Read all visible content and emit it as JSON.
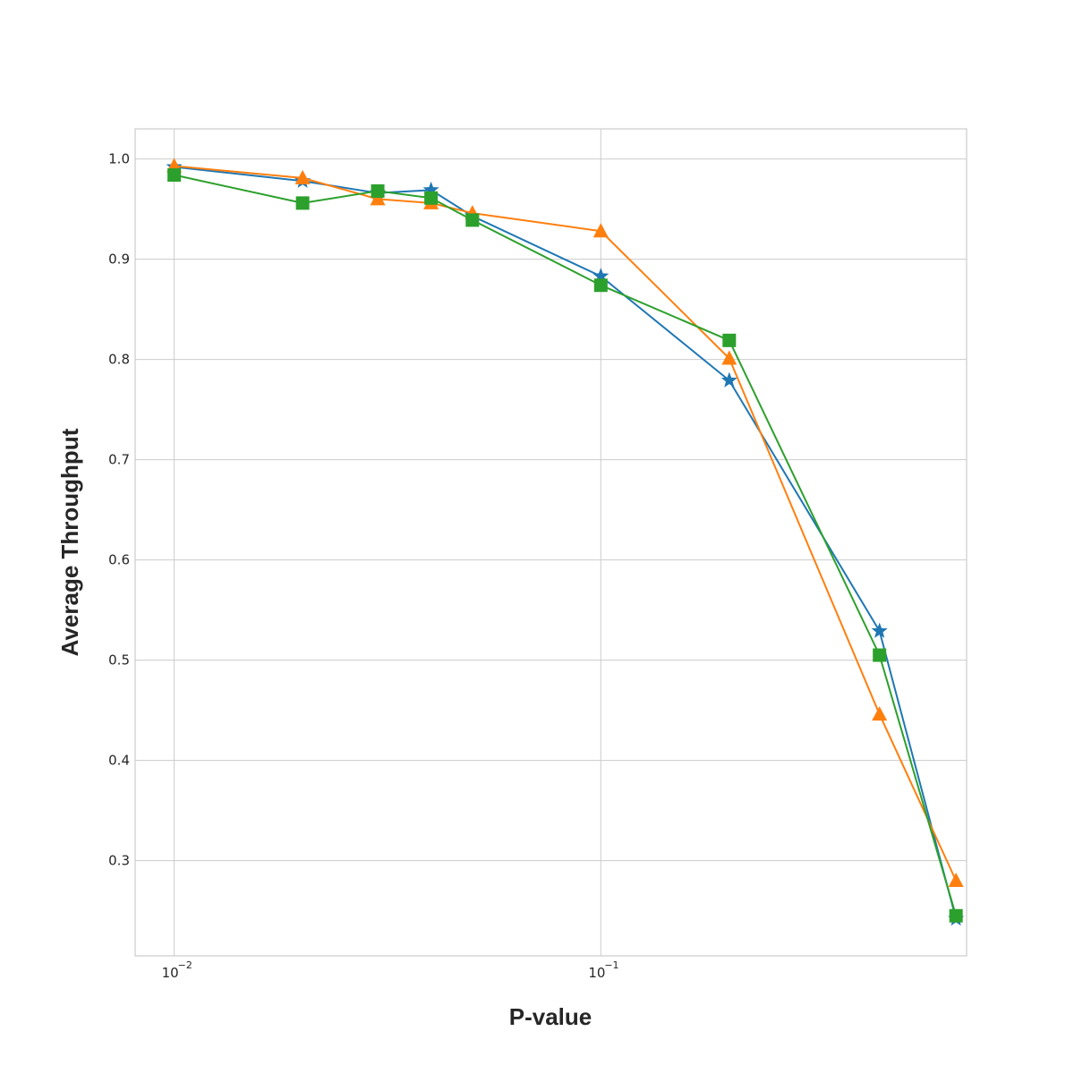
{
  "chart_data": {
    "type": "line",
    "xscale": "log",
    "xlim": [
      0.0081,
      0.72
    ],
    "ylim": [
      0.205,
      1.03
    ],
    "grid": true,
    "xlabel": "P-value",
    "ylabel": "Average Throughput",
    "xticks": [
      {
        "value": 0.01,
        "base": "10",
        "exp": "−2"
      },
      {
        "value": 0.1,
        "base": "10",
        "exp": "−1"
      }
    ],
    "yticks": [
      {
        "value": 0.3,
        "label": "0.3"
      },
      {
        "value": 0.4,
        "label": "0.4"
      },
      {
        "value": 0.5,
        "label": "0.5"
      },
      {
        "value": 0.6,
        "label": "0.6"
      },
      {
        "value": 0.7,
        "label": "0.7"
      },
      {
        "value": 0.8,
        "label": "0.8"
      },
      {
        "value": 0.9,
        "label": "0.9"
      },
      {
        "value": 1.0,
        "label": "1.0"
      }
    ],
    "series": [
      {
        "color": "#1f77b4",
        "marker": "star",
        "points": [
          [
            0.01,
            0.992
          ],
          [
            0.02,
            0.978
          ],
          [
            0.03,
            0.966
          ],
          [
            0.04,
            0.969
          ],
          [
            0.05,
            0.943
          ],
          [
            0.1,
            0.883
          ],
          [
            0.2,
            0.779
          ],
          [
            0.45,
            0.529
          ],
          [
            0.68,
            0.242
          ]
        ]
      },
      {
        "color": "#ff7f0e",
        "marker": "triangle",
        "points": [
          [
            0.01,
            0.993
          ],
          [
            0.02,
            0.981
          ],
          [
            0.03,
            0.96
          ],
          [
            0.04,
            0.956
          ],
          [
            0.05,
            0.946
          ],
          [
            0.1,
            0.928
          ],
          [
            0.2,
            0.801
          ],
          [
            0.45,
            0.446
          ],
          [
            0.68,
            0.28
          ]
        ]
      },
      {
        "color": "#2ca02c",
        "marker": "square",
        "points": [
          [
            0.01,
            0.984
          ],
          [
            0.02,
            0.956
          ],
          [
            0.03,
            0.968
          ],
          [
            0.04,
            0.961
          ],
          [
            0.05,
            0.939
          ],
          [
            0.1,
            0.874
          ],
          [
            0.2,
            0.819
          ],
          [
            0.45,
            0.505
          ],
          [
            0.68,
            0.245
          ]
        ]
      }
    ]
  }
}
